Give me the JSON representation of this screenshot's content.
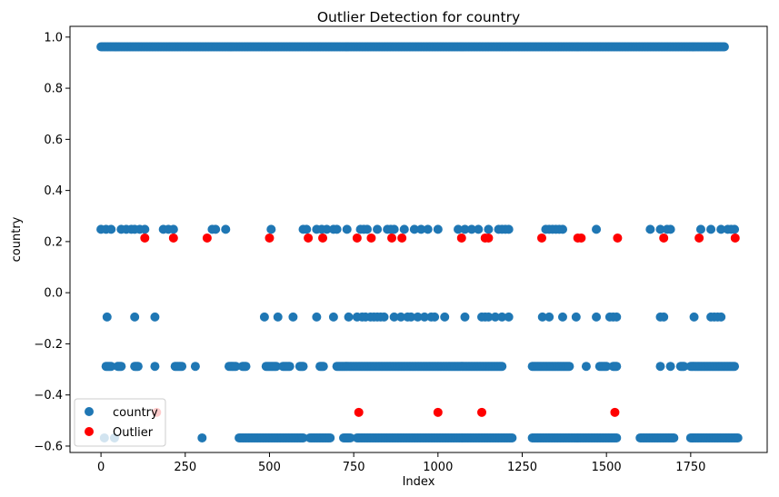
{
  "chart_data": {
    "type": "scatter",
    "title": "Outlier Detection for country",
    "xlabel": "Index",
    "ylabel": "country",
    "xlim": [
      -92,
      1977
    ],
    "ylim": [
      -0.625,
      1.042
    ],
    "xticks": [
      0,
      250,
      500,
      750,
      1000,
      1250,
      1500,
      1750
    ],
    "yticks": [
      -0.6,
      -0.4,
      -0.2,
      0.0,
      0.2,
      0.4,
      0.6,
      0.8,
      1.0
    ],
    "ytick_labels": [
      "−0.6",
      "−0.4",
      "−0.2",
      "0.0",
      "0.2",
      "0.4",
      "0.6",
      "0.8",
      "1.0"
    ],
    "grid": false,
    "legend": {
      "position": "lower-left",
      "entries": [
        "country",
        "Outlier"
      ]
    },
    "colors": {
      "country": "#1f77b4",
      "Outlier": "#ff0000"
    },
    "series": [
      {
        "name": "country",
        "levels": [
          {
            "y": 0.962,
            "x_ranges": [
              [
                0,
                1850
              ]
            ]
          },
          {
            "y": 0.248,
            "x": [
              0,
              15,
              30,
              60,
              75,
              90,
              100,
              115,
              130,
              185,
              200,
              215,
              330,
              340,
              370,
              505,
              600,
              610,
              640,
              655,
              670,
              690,
              700,
              730,
              770,
              780,
              790,
              820,
              850,
              860,
              870,
              900,
              930,
              950,
              970,
              1000,
              1060,
              1080,
              1100,
              1120,
              1150,
              1180,
              1190,
              1200,
              1210,
              1320,
              1330,
              1340,
              1350,
              1360,
              1370,
              1470,
              1630,
              1660,
              1680,
              1690,
              1780,
              1810,
              1840,
              1860,
              1870,
              1880
            ]
          },
          {
            "y": -0.095,
            "x": [
              18,
              100,
              160,
              485,
              525,
              570,
              640,
              690,
              735,
              760,
              775,
              785,
              800,
              810,
              820,
              830,
              840,
              870,
              890,
              910,
              920,
              940,
              960,
              980,
              990,
              1020,
              1080,
              1130,
              1140,
              1150,
              1170,
              1190,
              1210,
              1310,
              1330,
              1370,
              1410,
              1470,
              1510,
              1520,
              1530,
              1660,
              1670,
              1760,
              1810,
              1820,
              1830,
              1840
            ]
          },
          {
            "y": -0.288,
            "x_ranges": [
              [
                15,
                30
              ],
              [
                50,
                60
              ],
              [
                100,
                110
              ],
              [
                160,
                160
              ],
              [
                220,
                240
              ],
              [
                280,
                280
              ],
              [
                380,
                400
              ],
              [
                420,
                430
              ],
              [
                490,
                520
              ],
              [
                540,
                560
              ],
              [
                590,
                600
              ],
              [
                650,
                660
              ],
              [
                700,
                1190
              ],
              [
                1280,
                1390
              ],
              [
                1440,
                1440
              ],
              [
                1480,
                1500
              ],
              [
                1520,
                1530
              ],
              [
                1660,
                1660
              ],
              [
                1690,
                1690
              ],
              [
                1720,
                1730
              ],
              [
                1750,
                1880
              ]
            ]
          },
          {
            "y": -0.568,
            "x_ranges": [
              [
                10,
                10
              ],
              [
                40,
                40
              ],
              [
                300,
                300
              ],
              [
                410,
                600
              ],
              [
                620,
                680
              ],
              [
                720,
                740
              ],
              [
                760,
                1220
              ],
              [
                1280,
                1530
              ],
              [
                1600,
                1700
              ],
              [
                1750,
                1890
              ]
            ]
          }
        ]
      },
      {
        "name": "Outlier",
        "points": [
          [
            130,
            0.214
          ],
          [
            215,
            0.214
          ],
          [
            315,
            0.214
          ],
          [
            500,
            0.214
          ],
          [
            615,
            0.214
          ],
          [
            658,
            0.214
          ],
          [
            760,
            0.214
          ],
          [
            802,
            0.214
          ],
          [
            863,
            0.214
          ],
          [
            893,
            0.214
          ],
          [
            1070,
            0.214
          ],
          [
            1140,
            0.214
          ],
          [
            1150,
            0.214
          ],
          [
            1308,
            0.214
          ],
          [
            1415,
            0.214
          ],
          [
            1425,
            0.214
          ],
          [
            1533,
            0.214
          ],
          [
            1670,
            0.214
          ],
          [
            1775,
            0.214
          ],
          [
            1882,
            0.214
          ],
          [
            165,
            -0.468
          ],
          [
            765,
            -0.468
          ],
          [
            1000,
            -0.468
          ],
          [
            1130,
            -0.468
          ],
          [
            1525,
            -0.468
          ]
        ]
      }
    ]
  }
}
